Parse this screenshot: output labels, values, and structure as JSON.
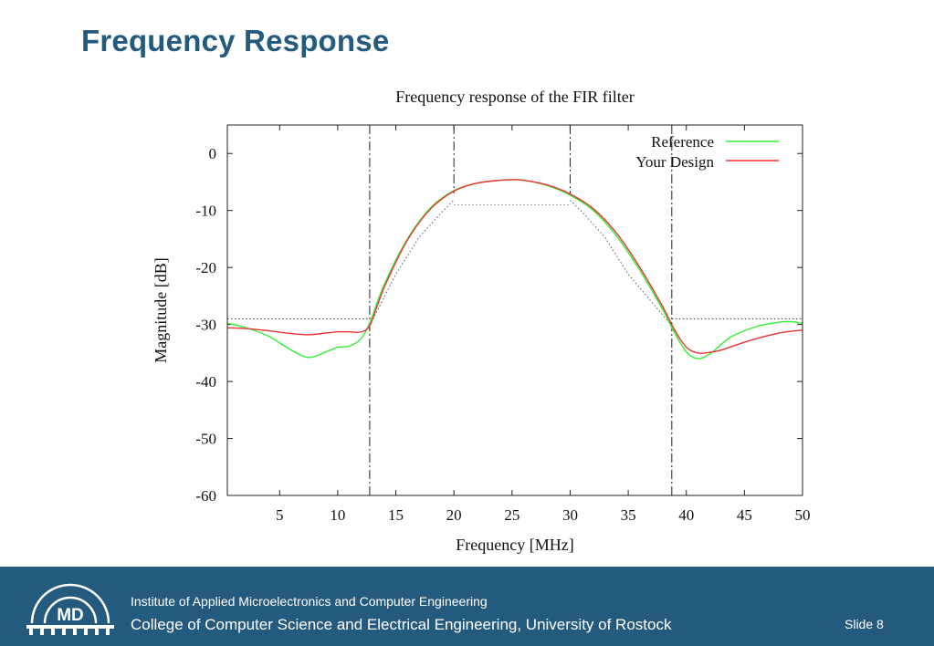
{
  "slide": {
    "title": "Frequency Response",
    "slide_number": "Slide 8"
  },
  "footer": {
    "institute": "Institute of Applied Microelectronics and Computer Engineering",
    "college": "College of Computer Science and Electrical Engineering, University of Rostock",
    "logo_text": "MD"
  },
  "colors": {
    "brand_blue": "#245a7e",
    "reference": "#33ee33",
    "your_design": "#ee3333"
  },
  "chart_data": {
    "type": "line",
    "title": "Frequency response of the FIR filter",
    "xlabel": "Frequency [MHz]",
    "ylabel": "Magnitude [dB]",
    "xlim": [
      0.5,
      50
    ],
    "ylim": [
      -60,
      5
    ],
    "xticks": [
      5,
      10,
      15,
      20,
      25,
      30,
      35,
      40,
      45,
      50
    ],
    "yticks": [
      0,
      -10,
      -20,
      -30,
      -40,
      -50,
      -60
    ],
    "legend_position": "top-right",
    "series": [
      {
        "name": "Reference",
        "color": "#33ee33",
        "x": [
          0.5,
          2,
          4,
          6,
          7.5,
          9,
          10,
          11,
          12,
          12.8,
          14,
          16,
          18,
          20,
          22,
          24,
          25,
          26,
          28,
          30,
          32,
          34,
          36,
          38,
          39,
          40,
          41,
          42,
          43,
          44,
          46,
          48,
          49,
          50
        ],
        "y": [
          -29.8,
          -30.5,
          -32,
          -34.5,
          -35.8,
          -34.8,
          -34,
          -33.8,
          -32.5,
          -29.5,
          -23,
          -15,
          -9.5,
          -6.5,
          -5.2,
          -4.7,
          -4.6,
          -4.7,
          -5.6,
          -7.3,
          -10,
          -14.5,
          -20.5,
          -27.5,
          -31.5,
          -34.8,
          -36,
          -35.2,
          -33.5,
          -32,
          -30.4,
          -29.6,
          -29.5,
          -29.8
        ]
      },
      {
        "name": "Your Design",
        "color": "#ee3333",
        "x": [
          0.5,
          2,
          4,
          6,
          7.5,
          9,
          10,
          11,
          12,
          12.8,
          14,
          16,
          18,
          20,
          22,
          24,
          25,
          26,
          28,
          30,
          32,
          34,
          36,
          38,
          39,
          40,
          41,
          42,
          43,
          44,
          46,
          48,
          49,
          50
        ],
        "y": [
          -30.6,
          -30.7,
          -31.1,
          -31.6,
          -31.8,
          -31.5,
          -31.3,
          -31.3,
          -31.3,
          -30,
          -23.5,
          -15.2,
          -9.7,
          -6.6,
          -5.2,
          -4.7,
          -4.6,
          -4.7,
          -5.5,
          -7.1,
          -9.7,
          -14,
          -20,
          -27,
          -31,
          -34,
          -35,
          -34.9,
          -34.5,
          -33.8,
          -32.5,
          -31.5,
          -31.2,
          -31
        ]
      }
    ],
    "mask": {
      "stopband_level": -29,
      "passband_level": -9,
      "stopband_edges": [
        12.75,
        38.75
      ],
      "passband_edges": [
        20,
        30
      ]
    }
  }
}
